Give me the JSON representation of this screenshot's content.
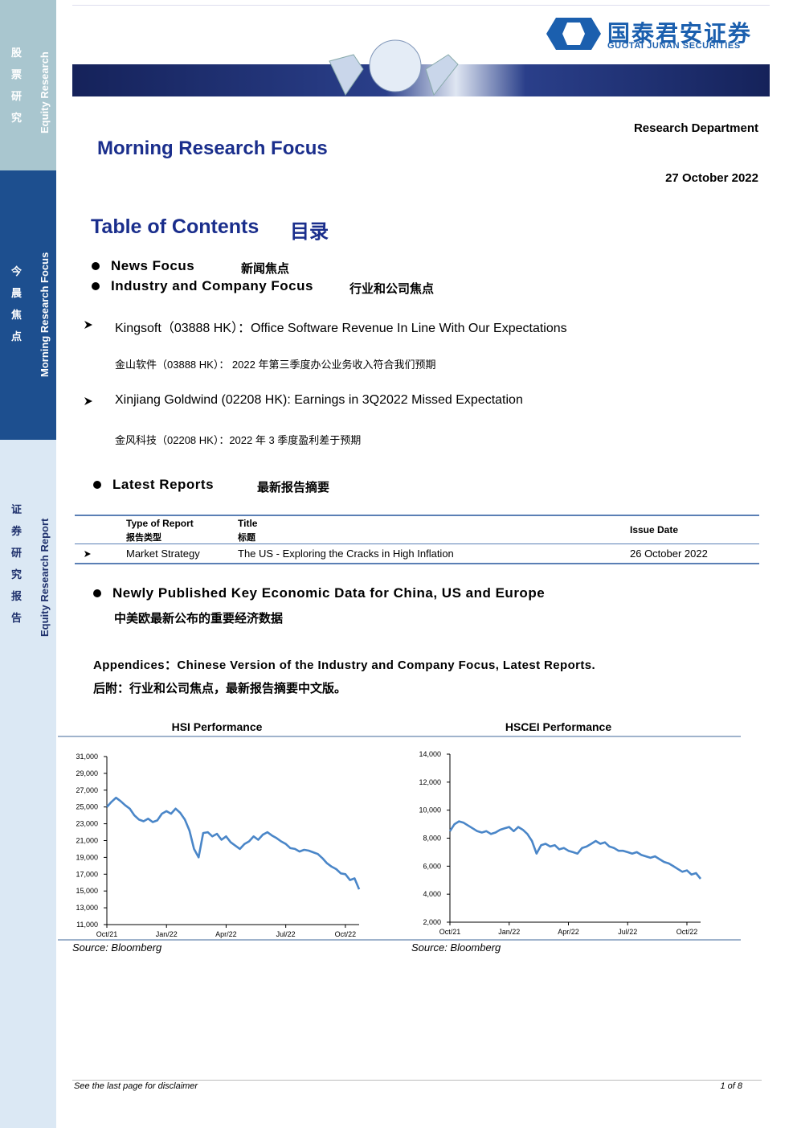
{
  "sidebar": [
    {
      "zh": "股票研究",
      "en": "Equity Research"
    },
    {
      "zh": "今晨焦点",
      "en": "Morning Research Focus"
    },
    {
      "zh": "证券研究报告",
      "en": "Equity Research Report"
    }
  ],
  "header": {
    "logo_zh": "国泰君安证券",
    "logo_en": "GUOTAI JUNAN SECURITIES"
  },
  "department": "Research Department",
  "title": "Morning Research Focus",
  "date": "27 October 2022",
  "toc": {
    "title": "Table of Contents",
    "title_zh": "目录"
  },
  "bullets": [
    {
      "en": "News Focus",
      "zh": "新闻焦点"
    },
    {
      "en": "Industry and Company Focus",
      "zh": "行业和公司焦点"
    }
  ],
  "items": [
    {
      "en": "Kingsoft（03888 HK）：Office Software Revenue In Line With Our Expectations",
      "zh": "金山软件（03888 HK）： 2022 年第三季度办公业务收入符合我们预期"
    },
    {
      "en": "Xinjiang Goldwind (02208 HK): Earnings in 3Q2022 Missed Expectation",
      "zh": "金风科技（02208 HK）：2022 年 3 季度盈利差于预期"
    }
  ],
  "latest_reports": {
    "en": "Latest Reports",
    "zh": "最新报告摘要",
    "table": {
      "headers": [
        [
          "Type of Report",
          "报告类型"
        ],
        [
          "Title",
          "标题"
        ],
        [
          "Issue Date"
        ]
      ],
      "rows": [
        [
          "Market Strategy",
          "The US - Exploring the Cracks in High Inflation",
          "26 October 2022"
        ]
      ]
    }
  },
  "economic": {
    "en": "Newly Published Key Economic Data for China, US and Europe",
    "zh": "中美欧最新公布的重要经济数据"
  },
  "appendices": {
    "en": "Appendices：Chinese Version of the Industry and Company Focus, Latest Reports.",
    "zh": "后附：行业和公司焦点，最新报告摘要中文版。"
  },
  "chart_data": [
    {
      "type": "line",
      "title": "HSI Performance",
      "source": "Source: Bloomberg",
      "color": "#4a86c8",
      "categories": [
        "Oct/21",
        null,
        null,
        null,
        null,
        null,
        null,
        null,
        null,
        null,
        null,
        null,
        null,
        "Jan/22",
        null,
        null,
        null,
        null,
        null,
        null,
        null,
        null,
        null,
        null,
        null,
        null,
        "Apr/22",
        null,
        null,
        null,
        null,
        null,
        null,
        null,
        null,
        null,
        null,
        null,
        null,
        "Jul/22",
        null,
        null,
        null,
        null,
        null,
        null,
        null,
        null,
        null,
        null,
        null,
        null,
        "Oct/22",
        null,
        null,
        null
      ],
      "values": [
        25000,
        25600,
        26100,
        25700,
        25200,
        24800,
        24000,
        23500,
        23300,
        23600,
        23200,
        23400,
        24200,
        24500,
        24200,
        24800,
        24300,
        23500,
        22200,
        20000,
        19000,
        21900,
        22000,
        21500,
        21800,
        21100,
        21500,
        20800,
        20400,
        20000,
        20600,
        20900,
        21500,
        21100,
        21700,
        22000,
        21600,
        21300,
        20900,
        20600,
        20100,
        20000,
        19700,
        19900,
        19800,
        19600,
        19400,
        18900,
        18300,
        17900,
        17600,
        17100,
        17000,
        16300,
        16500,
        15200
      ],
      "ylim": [
        11000,
        31000
      ],
      "yticks": [
        {
          "value": 11000,
          "label": "11,000"
        },
        {
          "value": 13000,
          "label": "13,000"
        },
        {
          "value": 15000,
          "label": "15,000"
        },
        {
          "value": 17000,
          "label": "17,000"
        },
        {
          "value": 19000,
          "label": "19,000"
        },
        {
          "value": 21000,
          "label": "21,000"
        },
        {
          "value": 23000,
          "label": "23,000"
        },
        {
          "value": 25000,
          "label": "25,000"
        },
        {
          "value": 27000,
          "label": "27,000"
        },
        {
          "value": 29000,
          "label": "29,000"
        },
        {
          "value": 31000,
          "label": "31,000"
        }
      ]
    },
    {
      "type": "line",
      "title": "HSCEI Performance",
      "source": "Source: Bloomberg",
      "color": "#4a86c8",
      "categories": [
        "Oct/21",
        null,
        null,
        null,
        null,
        null,
        null,
        null,
        null,
        null,
        null,
        null,
        null,
        "Jan/22",
        null,
        null,
        null,
        null,
        null,
        null,
        null,
        null,
        null,
        null,
        null,
        null,
        "Apr/22",
        null,
        null,
        null,
        null,
        null,
        null,
        null,
        null,
        null,
        null,
        null,
        null,
        "Jul/22",
        null,
        null,
        null,
        null,
        null,
        null,
        null,
        null,
        null,
        null,
        null,
        null,
        "Oct/22",
        null,
        null,
        null
      ],
      "values": [
        8500,
        9000,
        9200,
        9100,
        8900,
        8700,
        8500,
        8400,
        8500,
        8300,
        8400,
        8600,
        8700,
        8800,
        8500,
        8800,
        8600,
        8300,
        7800,
        6900,
        7500,
        7600,
        7400,
        7500,
        7200,
        7300,
        7100,
        7000,
        6900,
        7300,
        7400,
        7600,
        7800,
        7600,
        7700,
        7400,
        7300,
        7100,
        7100,
        7000,
        6900,
        7000,
        6800,
        6700,
        6600,
        6700,
        6500,
        6300,
        6200,
        6000,
        5800,
        5600,
        5700,
        5400,
        5500,
        5100
      ],
      "ylim": [
        2000,
        14000
      ],
      "yticks": [
        {
          "value": 2000,
          "label": "2,000"
        },
        {
          "value": 4000,
          "label": "4,000"
        },
        {
          "value": 6000,
          "label": "6,000"
        },
        {
          "value": 8000,
          "label": "8,000"
        },
        {
          "value": 10000,
          "label": "10,000"
        },
        {
          "value": 12000,
          "label": "12,000"
        },
        {
          "value": 14000,
          "label": "14,000"
        }
      ]
    }
  ],
  "footer": {
    "disclaimer": "See  the last page for disclaimer",
    "page": "1 of 8"
  }
}
